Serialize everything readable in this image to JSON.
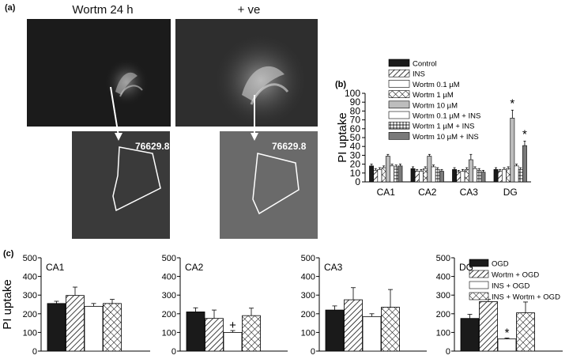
{
  "panel_a": {
    "label": "(a)",
    "left_title": "Wortm 24 h",
    "right_title": "+ ve",
    "roi_value_left": "76629.8",
    "roi_value_right": "76629.8"
  },
  "colors": {
    "black": "#1a1a1a",
    "light_gray": "#bdbdbd",
    "dark_gray": "#7a7a7a",
    "white": "#ffffff"
  },
  "chart_data": [
    {
      "id": "b",
      "panel_label": "(b)",
      "type": "bar",
      "ylabel": "PI uptake",
      "ylim": [
        0,
        100
      ],
      "yticks": [
        0,
        10,
        20,
        30,
        40,
        50,
        60,
        70,
        80,
        90,
        100
      ],
      "categories": [
        "CA1",
        "CA2",
        "CA3",
        "DG"
      ],
      "legend_position": "top",
      "series": [
        {
          "name": "Control",
          "pattern": "black",
          "values": [
            18,
            15,
            14,
            14
          ],
          "errors": [
            2,
            2,
            2,
            2
          ]
        },
        {
          "name": "INS",
          "pattern": "hatch",
          "values": [
            13,
            12,
            11,
            12
          ],
          "errors": [
            2,
            2,
            2,
            2
          ]
        },
        {
          "name": "Wortm 0.1 µM",
          "pattern": "white",
          "values": [
            14,
            12,
            12,
            14
          ],
          "errors": [
            2,
            2,
            2,
            2
          ]
        },
        {
          "name": "Wortm 1 µM",
          "pattern": "cross",
          "values": [
            16,
            15,
            14,
            15
          ],
          "errors": [
            2,
            2,
            2,
            2
          ]
        },
        {
          "name": "Wortm 10 µM",
          "pattern": "lightgray",
          "values": [
            29,
            29,
            25,
            72
          ],
          "errors": [
            2,
            2,
            6,
            9
          ]
        },
        {
          "name": "Wortm 0.1 µM + INS",
          "pattern": "white",
          "values": [
            18,
            17,
            15,
            18
          ],
          "errors": [
            2,
            2,
            2,
            2
          ]
        },
        {
          "name": "Wortm 1 µM + INS",
          "pattern": "grid",
          "values": [
            17,
            14,
            13,
            14
          ],
          "errors": [
            2,
            2,
            2,
            2
          ]
        },
        {
          "name": "Wortm 10 µM + INS",
          "pattern": "darkgray",
          "values": [
            18,
            12,
            11,
            41
          ],
          "errors": [
            2,
            2,
            2,
            5
          ]
        }
      ],
      "annotations": [
        {
          "text": "*",
          "category": "DG",
          "series": "Wortm 10 µM"
        },
        {
          "text": "*",
          "category": "DG",
          "series": "Wortm 10 µM + INS"
        }
      ]
    },
    {
      "id": "c1",
      "panel_label": "(c)",
      "type": "bar",
      "title": "CA1",
      "ylabel": "PI uptake",
      "ylim": [
        0,
        500
      ],
      "yticks": [
        0,
        100,
        200,
        300,
        400,
        500
      ],
      "ytick_labels": [
        "0",
        "100",
        "200",
        "300",
        "400",
        "500"
      ],
      "series": [
        {
          "name": "OGD",
          "pattern": "black",
          "value": 255,
          "error": 12
        },
        {
          "name": "Wortm + OGD",
          "pattern": "hatch",
          "value": 298,
          "error": 45
        },
        {
          "name": "INS + OGD",
          "pattern": "white",
          "value": 240,
          "error": 15
        },
        {
          "name": "INS + Wortm + OGD",
          "pattern": "cross",
          "value": 255,
          "error": 22
        }
      ]
    },
    {
      "id": "c2",
      "type": "bar",
      "title": "CA2",
      "ylim": [
        0,
        500
      ],
      "yticks": [
        0,
        100,
        200,
        300,
        400,
        500
      ],
      "ytick_labels": [
        "0",
        "100",
        "200",
        "300",
        "400",
        "500"
      ],
      "series": [
        {
          "name": "OGD",
          "pattern": "black",
          "value": 210,
          "error": 22
        },
        {
          "name": "Wortm + OGD",
          "pattern": "hatch",
          "value": 175,
          "error": 45
        },
        {
          "name": "INS + OGD",
          "pattern": "white",
          "value": 100,
          "error": 10
        },
        {
          "name": "INS + Wortm + OGD",
          "pattern": "cross",
          "value": 190,
          "error": 40
        }
      ],
      "annotations": [
        {
          "text": "+",
          "series": "INS + OGD"
        }
      ]
    },
    {
      "id": "c3",
      "type": "bar",
      "title": "CA3",
      "ylim": [
        0,
        500
      ],
      "yticks": [
        0,
        100,
        200,
        300,
        400,
        500
      ],
      "ytick_labels": [
        "0",
        "100",
        "200",
        "300",
        "400",
        "500"
      ],
      "series": [
        {
          "name": "OGD",
          "pattern": "black",
          "value": 220,
          "error": 22
        },
        {
          "name": "Wortm + OGD",
          "pattern": "hatch",
          "value": 275,
          "error": 65
        },
        {
          "name": "INS + OGD",
          "pattern": "white",
          "value": 185,
          "error": 15
        },
        {
          "name": "INS + Wortm + OGD",
          "pattern": "cross",
          "value": 235,
          "error": 95
        }
      ]
    },
    {
      "id": "c4",
      "type": "bar",
      "title": "DG",
      "ylim": [
        0,
        500
      ],
      "yticks": [
        0,
        100,
        200,
        300,
        400,
        500
      ],
      "ytick_labels": [
        "0",
        "100",
        "200",
        "300",
        "400",
        "500"
      ],
      "legend_position": "top-right",
      "series": [
        {
          "name": "OGD",
          "pattern": "black",
          "value": 175,
          "error": 22
        },
        {
          "name": "Wortm + OGD",
          "pattern": "hatch",
          "value": 265,
          "error": 12
        },
        {
          "name": "INS + OGD",
          "pattern": "white",
          "value": 65,
          "error": 5
        },
        {
          "name": "INS + Wortm + OGD",
          "pattern": "cross",
          "value": 205,
          "error": 58
        }
      ],
      "annotations": [
        {
          "text": "*",
          "series": "INS + OGD"
        }
      ]
    }
  ]
}
